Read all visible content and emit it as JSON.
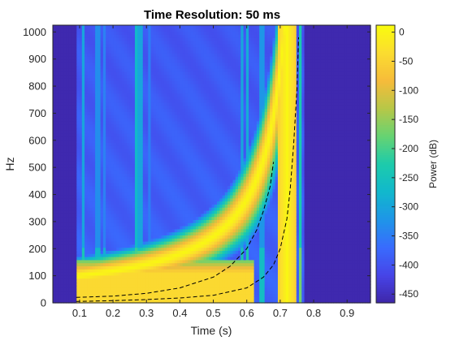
{
  "chart_data": {
    "type": "heatmap",
    "title": "Time Resolution: 50 ms",
    "xlabel": "Time (s)",
    "ylabel": "Hz",
    "colorbar_label": "Power (dB)",
    "xlim": [
      0.02,
      0.97
    ],
    "ylim": [
      0,
      1025
    ],
    "clim": [
      -465,
      12
    ],
    "x_ticks": [
      0.1,
      0.2,
      0.3,
      0.4,
      0.5,
      0.6,
      0.7,
      0.8,
      0.9
    ],
    "x_tick_labels": [
      "0.1",
      "0.2",
      "0.3",
      "0.4",
      "0.5",
      "0.6",
      "0.7",
      "0.8",
      "0.9"
    ],
    "y_ticks": [
      0,
      100,
      200,
      300,
      400,
      500,
      600,
      700,
      800,
      900,
      1000
    ],
    "y_tick_labels": [
      "0",
      "100",
      "200",
      "300",
      "400",
      "500",
      "600",
      "700",
      "800",
      "900",
      "1000"
    ],
    "colorbar_ticks": [
      0,
      -50,
      -100,
      -150,
      -200,
      -250,
      -300,
      -350,
      -400,
      -450
    ],
    "colorbar_tick_labels": [
      "0",
      "-50",
      "-100",
      "-150",
      "-200",
      "-250",
      "-300",
      "-350",
      "-400",
      "-450"
    ],
    "colormap": "parula",
    "signal_time_range": [
      0.09,
      0.77
    ],
    "noise_floor_db": -380,
    "background_db": -460,
    "ridge": {
      "name": "chirp",
      "start_time": 0.09,
      "end_time": 0.77,
      "freq_at_start": 100,
      "blowup_time": 0.78,
      "peak_db": 5
    },
    "vertical_streaks": [
      {
        "t": 0.11,
        "db": -300
      },
      {
        "t": 0.155,
        "db": -330
      },
      {
        "t": 0.175,
        "db": -345
      },
      {
        "t": 0.27,
        "db": -270
      },
      {
        "t": 0.28,
        "db": -300
      },
      {
        "t": 0.31,
        "db": -350
      },
      {
        "t": 0.585,
        "db": -300
      },
      {
        "t": 0.6,
        "db": -290
      },
      {
        "t": 0.645,
        "db": -320
      },
      {
        "t": 0.76,
        "db": -230
      }
    ],
    "dashed_curves": [
      {
        "name": "upper",
        "t": [
          0.09,
          0.2,
          0.3,
          0.4,
          0.5,
          0.55,
          0.6,
          0.63,
          0.65,
          0.67,
          0.68
        ],
        "f": [
          20,
          25,
          35,
          55,
          95,
          135,
          200,
          270,
          340,
          430,
          520
        ]
      },
      {
        "name": "lower",
        "t": [
          0.09,
          0.2,
          0.3,
          0.4,
          0.5,
          0.6,
          0.65,
          0.68,
          0.7,
          0.72,
          0.73,
          0.74,
          0.75,
          0.755
        ],
        "f": [
          5,
          8,
          12,
          18,
          28,
          55,
          95,
          140,
          200,
          310,
          420,
          580,
          790,
          980
        ]
      }
    ]
  }
}
